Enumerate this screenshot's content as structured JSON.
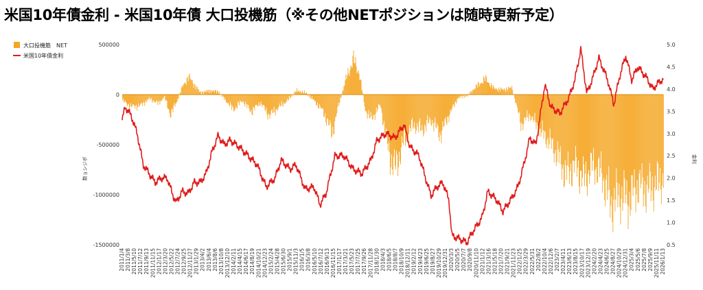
{
  "title": "米国10年債金利 - 米国10年債 大口投機筋（※その他NETポジションは随時更新予定）",
  "chart_data": {
    "type": "bar+line",
    "title": "米国10年債金利 - 米国10年債 大口投機筋（※その他NETポジションは随時更新予定）",
    "y_left_label": "数ョシジポ",
    "y_right_label": "金利",
    "y_left_lim": [
      -1500000,
      500000
    ],
    "y_left_ticks": [
      "500000",
      "0",
      "-500000",
      "-1000000",
      "-1500000"
    ],
    "y_left_tick_values": [
      500000,
      0,
      -500000,
      -1000000,
      -1500000
    ],
    "y_right_lim": [
      0.5,
      5.0
    ],
    "y_right_ticks": [
      "5.0",
      "4.5",
      "4.0",
      "3.5",
      "3.0",
      "2.5",
      "2.0",
      "1.5",
      "1.0",
      "0.5"
    ],
    "y_right_tick_values": [
      5.0,
      4.5,
      4.0,
      3.5,
      3.0,
      2.5,
      2.0,
      1.5,
      1.0,
      0.5
    ],
    "x_tick_labels": [
      "2011/1/4",
      "2011/3/8",
      "2011/5/10",
      "2011/7/12",
      "2011/9/13",
      "2011/11/15",
      "2012/1/17",
      "2012/3/20",
      "2012/5/22",
      "2012/7/24",
      "2012/9/25",
      "2012/11/27",
      "2013/1/29",
      "2013/4/2",
      "2013/6/4",
      "2013/8/6",
      "2013/10/8",
      "2013/12/10",
      "2014/2/11",
      "2014/4/15",
      "2014/6/17",
      "2014/8/19",
      "2014/10/21",
      "2014/12/23",
      "2015/2/24",
      "2015/4/28",
      "2015/6/30",
      "2015/9/1",
      "2015/11/3",
      "2016/1/5",
      "2016/3/8",
      "2016/5/10",
      "2016/7/12",
      "2016/9/13",
      "2016/11/15",
      "2017/1/17",
      "2017/3/21",
      "2017/5/23",
      "2017/7/25",
      "2017/9/26",
      "2017/11/28",
      "2018/1/30",
      "2018/4/3",
      "2018/6/5",
      "2018/8/7",
      "2018/10/9",
      "2018/12/11",
      "2019/2/12",
      "2019/4/23",
      "2019/6/25",
      "2019/8/27",
      "2019/10/29",
      "2019/12/31",
      "2020/3/3",
      "2020/5/5",
      "2020/7/7",
      "2020/9/8",
      "2020/11/10",
      "2021/1/12",
      "2021/3/16",
      "2021/5/18",
      "2021/7/20",
      "2021/9/21",
      "2021/11/23",
      "2022/1/25",
      "2022/3/29",
      "2022/5/31",
      "2022/8/2",
      "2022/10/4",
      "2022/12/6",
      "2023/2/7",
      "2023/4/11",
      "2023/6/13",
      "2023/8/15",
      "2023/10/17",
      "2023/12/19",
      "2024/2/20",
      "2024/4/23",
      "2024/6/25",
      "2024/8/27",
      "2024/10/29",
      "2024/12/31",
      "2025/3/4",
      "2025/5/6",
      "2025/7/8",
      "2025/9/9",
      "2025/11/11",
      "2026/1/13"
    ],
    "series": [
      {
        "name": "大口投機筋　NET",
        "type": "bar",
        "color": "#F5A623",
        "x_range": [
          "2011/1/4",
          "2026/1/13"
        ],
        "points": [
          [
            "2011/1",
            -60000
          ],
          [
            "2011/4",
            -120000
          ],
          [
            "2011/7",
            -110000
          ],
          [
            "2011/10",
            -40000
          ],
          [
            "2012/1",
            -90000
          ],
          [
            "2012/3",
            -20000
          ],
          [
            "2012/5",
            -200000
          ],
          [
            "2012/7",
            -80000
          ],
          [
            "2012/9",
            80000
          ],
          [
            "2012/11",
            180000
          ],
          [
            "2013/1",
            100000
          ],
          [
            "2013/3",
            20000
          ],
          [
            "2013/6",
            40000
          ],
          [
            "2013/9",
            30000
          ],
          [
            "2013/11",
            -40000
          ],
          [
            "2014/2",
            -150000
          ],
          [
            "2014/5",
            -60000
          ],
          [
            "2014/8",
            -170000
          ],
          [
            "2014/11",
            -80000
          ],
          [
            "2015/2",
            -210000
          ],
          [
            "2015/5",
            -130000
          ],
          [
            "2015/8",
            -60000
          ],
          [
            "2015/11",
            40000
          ],
          [
            "2016/2",
            20000
          ],
          [
            "2016/5",
            -60000
          ],
          [
            "2016/8",
            -170000
          ],
          [
            "2016/11",
            -390000
          ],
          [
            "2017/1",
            -120000
          ],
          [
            "2017/4",
            200000
          ],
          [
            "2017/6",
            350000
          ],
          [
            "2017/8",
            220000
          ],
          [
            "2017/10",
            -150000
          ],
          [
            "2017/12",
            -250000
          ],
          [
            "2018/3",
            -100000
          ],
          [
            "2018/6",
            -600000
          ],
          [
            "2018/8",
            -740000
          ],
          [
            "2018/11",
            -450000
          ],
          [
            "2019/2",
            -300000
          ],
          [
            "2019/5",
            -350000
          ],
          [
            "2019/8",
            -250000
          ],
          [
            "2019/11",
            -400000
          ],
          [
            "2020/2",
            -200000
          ],
          [
            "2020/5",
            -30000
          ],
          [
            "2020/8",
            -10000
          ],
          [
            "2020/11",
            80000
          ],
          [
            "2021/2",
            160000
          ],
          [
            "2021/5",
            60000
          ],
          [
            "2021/8",
            50000
          ],
          [
            "2021/11",
            70000
          ],
          [
            "2022/2",
            -300000
          ],
          [
            "2022/5",
            -200000
          ],
          [
            "2022/8",
            -350000
          ],
          [
            "2022/11",
            -450000
          ],
          [
            "2023/2",
            -600000
          ],
          [
            "2023/5",
            -800000
          ],
          [
            "2023/8",
            -700000
          ],
          [
            "2023/11",
            -850000
          ],
          [
            "2024/2",
            -700000
          ],
          [
            "2024/5",
            -800000
          ],
          [
            "2024/8",
            -1100000
          ],
          [
            "2024/11",
            -1000000
          ],
          [
            "2025/2",
            -1050000
          ],
          [
            "2025/5",
            -900000
          ],
          [
            "2025/8",
            -950000
          ],
          [
            "2025/11",
            -900000
          ],
          [
            "2026/1",
            -850000
          ]
        ]
      },
      {
        "name": "米国10年債金利",
        "type": "line",
        "color": "#E01B1B",
        "axis": "right",
        "points": [
          [
            "2011/1",
            3.3
          ],
          [
            "2011/2",
            3.6
          ],
          [
            "2011/4",
            3.4
          ],
          [
            "2011/6",
            3.0
          ],
          [
            "2011/8",
            2.3
          ],
          [
            "2011/10",
            2.1
          ],
          [
            "2011/12",
            1.9
          ],
          [
            "2012/2",
            2.0
          ],
          [
            "2012/4",
            2.0
          ],
          [
            "2012/6",
            1.6
          ],
          [
            "2012/7",
            1.45
          ],
          [
            "2012/9",
            1.7
          ],
          [
            "2012/11",
            1.65
          ],
          [
            "2013/1",
            1.9
          ],
          [
            "2013/3",
            1.9
          ],
          [
            "2013/5",
            2.1
          ],
          [
            "2013/7",
            2.6
          ],
          [
            "2013/9",
            2.95
          ],
          [
            "2013/11",
            2.75
          ],
          [
            "2014/1",
            2.85
          ],
          [
            "2014/4",
            2.7
          ],
          [
            "2014/7",
            2.5
          ],
          [
            "2014/10",
            2.3
          ],
          [
            "2015/1",
            1.8
          ],
          [
            "2015/4",
            2.0
          ],
          [
            "2015/6",
            2.4
          ],
          [
            "2015/9",
            2.2
          ],
          [
            "2015/11",
            2.3
          ],
          [
            "2016/2",
            1.75
          ],
          [
            "2016/5",
            1.8
          ],
          [
            "2016/7",
            1.4
          ],
          [
            "2016/9",
            1.65
          ],
          [
            "2016/12",
            2.5
          ],
          [
            "2017/3",
            2.5
          ],
          [
            "2017/6",
            2.2
          ],
          [
            "2017/9",
            2.1
          ],
          [
            "2017/12",
            2.4
          ],
          [
            "2018/2",
            2.85
          ],
          [
            "2018/5",
            3.0
          ],
          [
            "2018/8",
            2.9
          ],
          [
            "2018/11",
            3.2
          ],
          [
            "2019/1",
            2.7
          ],
          [
            "2019/4",
            2.5
          ],
          [
            "2019/6",
            2.05
          ],
          [
            "2019/8",
            1.6
          ],
          [
            "2019/10",
            1.8
          ],
          [
            "2019/12",
            1.9
          ],
          [
            "2020/2",
            1.5
          ],
          [
            "2020/3",
            0.7
          ],
          [
            "2020/5",
            0.65
          ],
          [
            "2020/8",
            0.55
          ],
          [
            "2020/10",
            0.8
          ],
          [
            "2021/1",
            1.1
          ],
          [
            "2021/3",
            1.7
          ],
          [
            "2021/6",
            1.5
          ],
          [
            "2021/8",
            1.25
          ],
          [
            "2021/11",
            1.55
          ],
          [
            "2022/1",
            1.8
          ],
          [
            "2022/3",
            2.3
          ],
          [
            "2022/5",
            2.9
          ],
          [
            "2022/7",
            2.75
          ],
          [
            "2022/10",
            4.1
          ],
          [
            "2022/12",
            3.6
          ],
          [
            "2023/3",
            3.45
          ],
          [
            "2023/6",
            3.8
          ],
          [
            "2023/8",
            4.2
          ],
          [
            "2023/10",
            4.9
          ],
          [
            "2023/12",
            3.9
          ],
          [
            "2024/2",
            4.25
          ],
          [
            "2024/4",
            4.7
          ],
          [
            "2024/7",
            4.2
          ],
          [
            "2024/9",
            3.65
          ],
          [
            "2024/11",
            4.3
          ],
          [
            "2025/1",
            4.75
          ],
          [
            "2025/3",
            4.2
          ],
          [
            "2025/5",
            4.5
          ],
          [
            "2025/8",
            4.25
          ],
          [
            "2025/10",
            4.0
          ],
          [
            "2025/12",
            4.15
          ],
          [
            "2026/1",
            4.2
          ]
        ]
      }
    ],
    "legend_position": "top-left",
    "grid": false
  }
}
